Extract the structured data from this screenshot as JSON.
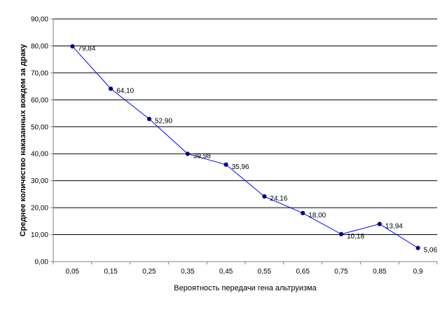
{
  "chart_data": {
    "type": "line",
    "title": "",
    "xlabel": "Вероятность передачи гена альтруизма",
    "ylabel": "Среднее количество наказанных вождем за драку",
    "categories": [
      "0,05",
      "0,15",
      "0,25",
      "0,35",
      "0,45",
      "0,55",
      "0,65",
      "0,75",
      "0,85",
      "0,9"
    ],
    "series": [
      {
        "values": [
          79.84,
          64.1,
          52.9,
          39.98,
          35.96,
          24.16,
          18.0,
          10.18,
          13.94,
          5.06
        ],
        "labels": [
          "79,84",
          "64,10",
          "52,90",
          "39,98",
          "35,96",
          "24,16",
          "18,00",
          "10,18",
          "13,94",
          "5,06"
        ]
      }
    ],
    "ylim": [
      0,
      90
    ],
    "yticks": [
      0,
      10,
      20,
      30,
      40,
      50,
      60,
      70,
      80,
      90
    ],
    "ytick_labels": [
      "0,00",
      "10,00",
      "20,00",
      "30,00",
      "40,00",
      "50,00",
      "60,00",
      "70,00",
      "80,00",
      "90,00"
    ],
    "grid": true,
    "legend": "none",
    "colors": {
      "line": "#0000ff",
      "marker": "#00007f",
      "grid": "#000000",
      "axis": "#808080"
    }
  }
}
